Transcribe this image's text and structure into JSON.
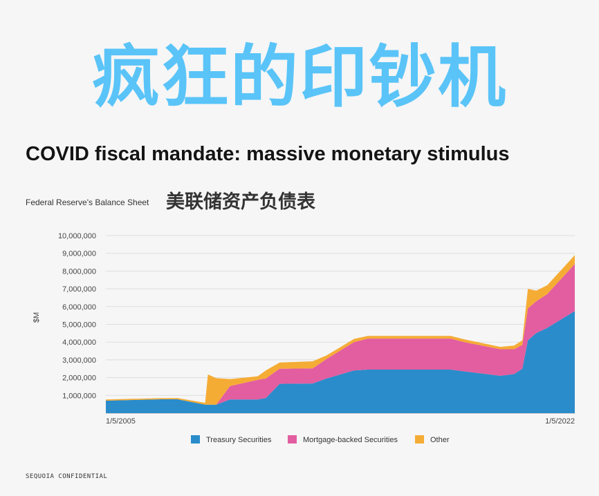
{
  "header": {
    "big_title": "疯狂的印钞机",
    "headline": "COVID fiscal mandate: massive monetary stimulus",
    "subtitle": "Federal Reserve's Balance Sheet",
    "cn_subtitle": "美联储资产负债表"
  },
  "footer": {
    "text": "SEQUOIA CONFIDENTIAL"
  },
  "colors": {
    "treasury": "#2a8ccb",
    "mbs": "#e25ea0",
    "other": "#f5ac35",
    "grid": "#dddddd",
    "title_blue": "#5ac4f8"
  },
  "chart_data": {
    "type": "area",
    "stacked": true,
    "title": "Federal Reserve's Balance Sheet",
    "ylabel": "$M",
    "xlabel": "",
    "ylim": [
      0,
      10000000
    ],
    "xlim": [
      2005.0,
      2022.0
    ],
    "grid": true,
    "legend_position": "bottom",
    "yticks": [
      1000000,
      2000000,
      3000000,
      4000000,
      5000000,
      6000000,
      7000000,
      8000000,
      9000000,
      10000000
    ],
    "ytick_labels": [
      "1,000,000",
      "2,000,000",
      "3,000,000",
      "4,000,000",
      "5,000,000",
      "6,000,000",
      "7,000,000",
      "8,000,000",
      "9,000,000",
      "10,000,000"
    ],
    "xtick_labels": [
      {
        "x": 2005.0,
        "label": "1/5/2005"
      },
      {
        "x": 2022.0,
        "label": "1/5/2022"
      }
    ],
    "x": [
      2005.0,
      2007.0,
      2007.6,
      2008.6,
      2008.7,
      2009.0,
      2009.5,
      2010.5,
      2010.8,
      2011.3,
      2012.5,
      2013.0,
      2014.0,
      2014.5,
      2017.5,
      2018.0,
      2019.3,
      2019.8,
      2020.1,
      2020.3,
      2020.6,
      2021.0,
      2022.0
    ],
    "series": [
      {
        "name": "Treasury Securities",
        "values": [
          700000,
          780000,
          780000,
          480000,
          480000,
          470000,
          770000,
          770000,
          850000,
          1650000,
          1670000,
          1950000,
          2400000,
          2450000,
          2450000,
          2350000,
          2100000,
          2200000,
          2500000,
          4100000,
          4500000,
          4800000,
          5750000
        ]
      },
      {
        "name": "Mortgage-backed Securities",
        "values": [
          0,
          0,
          0,
          0,
          0,
          0,
          750000,
          1100000,
          1100000,
          850000,
          850000,
          1100000,
          1600000,
          1750000,
          1750000,
          1650000,
          1500000,
          1400000,
          1350000,
          1800000,
          1800000,
          1900000,
          2650000
        ]
      },
      {
        "name": "Other",
        "values": [
          70000,
          60000,
          70000,
          100000,
          1700000,
          1500000,
          400000,
          200000,
          450000,
          350000,
          400000,
          200000,
          180000,
          150000,
          150000,
          150000,
          130000,
          200000,
          250000,
          1100000,
          600000,
          500000,
          500000
        ]
      }
    ]
  }
}
